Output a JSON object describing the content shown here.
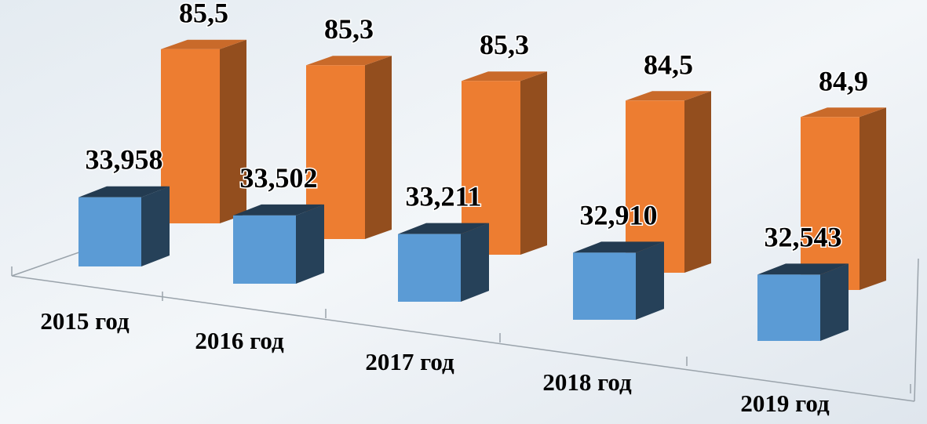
{
  "chart_data": {
    "type": "bar3d",
    "categories": [
      "2015 год",
      "2016 год",
      "2017 год",
      "2018 год",
      "2019 год"
    ],
    "series": [
      {
        "color": "#5b9bd5",
        "values": [
          33.958,
          33.502,
          33.211,
          32.91,
          32.543
        ],
        "value_labels": [
          "33,958",
          "33,502",
          "33,211",
          "32,910",
          "32,543"
        ]
      },
      {
        "color": "#ed7d31",
        "values": [
          85.5,
          85.3,
          85.3,
          84.5,
          84.9
        ],
        "value_labels": [
          "85,5",
          "85,3",
          "85,3",
          "84,5",
          "84,9"
        ]
      }
    ]
  }
}
